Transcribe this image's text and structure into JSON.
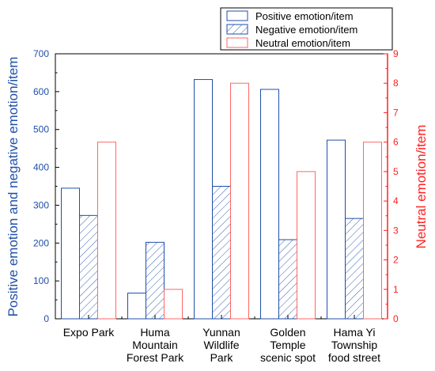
{
  "chart_data": {
    "type": "bar",
    "title": "",
    "categories": [
      [
        "Expo Park"
      ],
      [
        "Huma",
        "Mountain",
        "Forest Park"
      ],
      [
        "Yunnan",
        "Wildlife",
        "Park"
      ],
      [
        "Golden",
        "Temple",
        "scenic spot"
      ],
      [
        "Hama Yi",
        "Township",
        "food street"
      ]
    ],
    "ylabel_left": "Positive emotion and negative emotion/item",
    "ylabel_right": "Neutral emotion/item",
    "ylim_left": [
      0,
      700
    ],
    "ylim_right": [
      0,
      9
    ],
    "yticks_left": [
      "0",
      "100",
      "200",
      "300",
      "400",
      "500",
      "600",
      "700"
    ],
    "yticks_right": [
      "0",
      "1",
      "2",
      "3",
      "4",
      "5",
      "6",
      "7",
      "8",
      "9"
    ],
    "series": [
      {
        "name": "Positive emotion/item",
        "axis": "left",
        "values": [
          345,
          68,
          632,
          606,
          472
        ],
        "style": "outline",
        "color": "#1f4fa8"
      },
      {
        "name": "Negative emotion/item",
        "axis": "left",
        "values": [
          273,
          202,
          350,
          209,
          265
        ],
        "style": "hatched",
        "color": "#1f4fa8"
      },
      {
        "name": "Neutral emotion/item",
        "axis": "right",
        "values": [
          6,
          1,
          8,
          5,
          6
        ],
        "style": "outline",
        "color": "#ff6666"
      }
    ],
    "left_axis_color": "#1f4fa8",
    "right_axis_color": "#ff2020",
    "legend_position": "top-right"
  }
}
